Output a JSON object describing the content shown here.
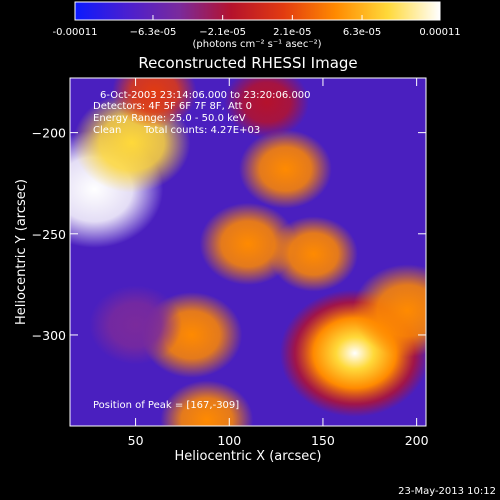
{
  "chart_data": {
    "type": "heatmap",
    "title": "Reconstructed RHESSI Image",
    "xlabel": "Heliocentric X (arcsec)",
    "ylabel": "Heliocentric Y (arcsec)",
    "xlim": [
      15,
      205
    ],
    "ylim": [
      -345,
      -173
    ],
    "xticks": [
      50,
      100,
      150,
      200
    ],
    "yticks": [
      -200,
      -250,
      -300
    ],
    "colorbar": {
      "range": [
        -0.00011,
        0.00011
      ],
      "tick_values": [
        -0.00011,
        -6.3e-05,
        -2.1e-05,
        2.1e-05,
        6.3e-05,
        0.00011
      ],
      "tick_labels": [
        "-0.00011",
        "−6.3e-05",
        "−2.1e-05",
        "2.1e-05",
        "6.3e-05",
        "0.00011"
      ],
      "units": "(photons cm⁻² s⁻¹ asec⁻²)",
      "colors": [
        "#0a1aff",
        "#4a1fd0",
        "#7a2a9c",
        "#b5122c",
        "#e23b10",
        "#ff8a00",
        "#ffd93a",
        "#ffffff"
      ]
    },
    "annotations": {
      "time": "6-Oct-2003 23:14:06.000 to 23:20:06.000",
      "detectors": "Detectors: 4F 5F 6F 7F 8F, Att 0",
      "energy": "Energy Range: 25.0 - 50.0 keV",
      "method": "Clean",
      "counts": "Total counts: 4.27E+03",
      "peak": "Position of Peak = [167,-309]"
    },
    "sources": [
      {
        "x": 167,
        "y": -309,
        "value": 0.00011
      },
      {
        "x": 28,
        "y": -228,
        "value": 9.5e-05
      },
      {
        "x": 48,
        "y": -205,
        "value": 7e-05
      },
      {
        "x": 195,
        "y": -288,
        "value": 6e-05
      },
      {
        "x": 110,
        "y": -255,
        "value": 4.5e-05
      },
      {
        "x": 130,
        "y": -218,
        "value": 4e-05
      },
      {
        "x": 80,
        "y": -300,
        "value": 5e-05
      },
      {
        "x": 88,
        "y": -342,
        "value": 4e-05
      },
      {
        "x": 145,
        "y": -260,
        "value": 3.5e-05
      },
      {
        "x": 60,
        "y": -180,
        "value": 3e-05
      },
      {
        "x": 50,
        "y": -295,
        "value": -4e-05
      },
      {
        "x": 120,
        "y": -185,
        "value": -3e-05
      }
    ],
    "grid": false,
    "legend": "none"
  },
  "footer": {
    "date": "23-May-2013 10:12"
  }
}
